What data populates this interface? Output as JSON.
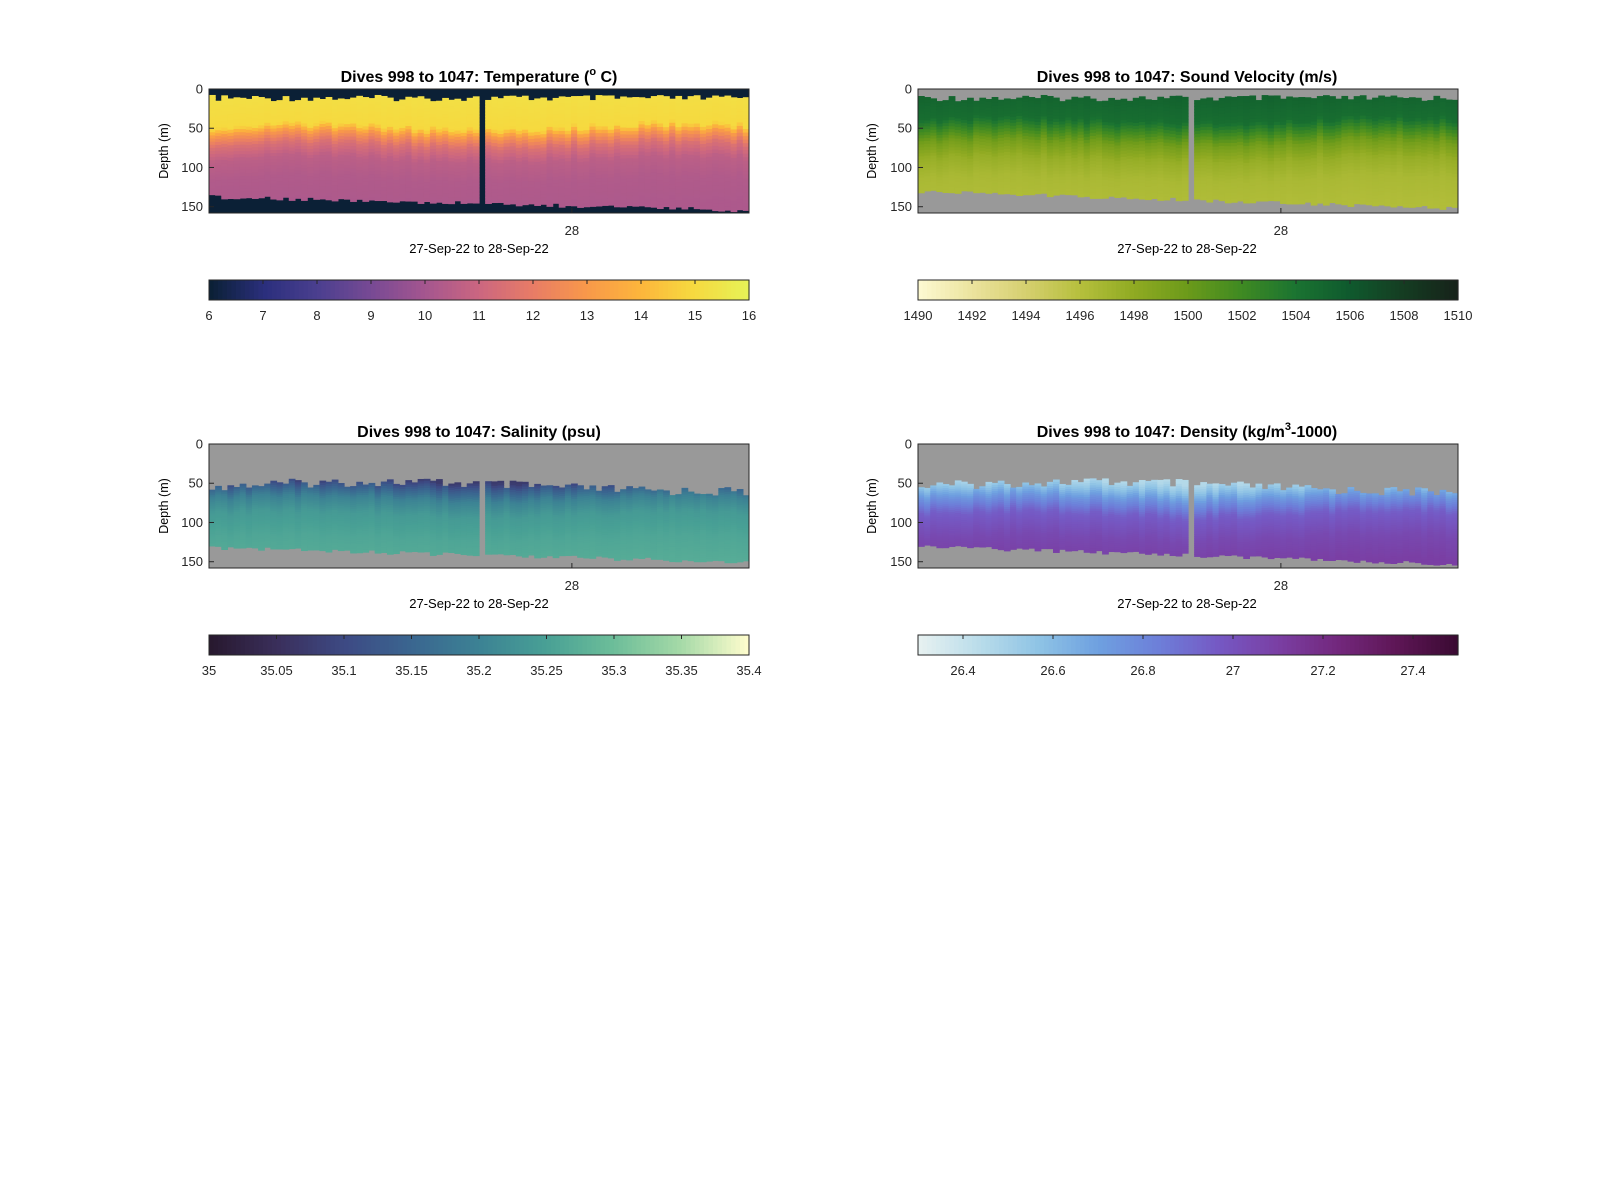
{
  "chart_data": [
    {
      "type": "heatmap",
      "variable": "temperature",
      "title": "Dives 998 to 1047: Temperature (",
      "title_sup": "o",
      "title_end": " C)",
      "ylabel": "Depth (m)",
      "xlabel": "27-Sep-22 to 28-Sep-22",
      "x_ticks": [
        "28"
      ],
      "y_ticks": [
        0,
        50,
        100,
        150
      ],
      "ylim": [
        0,
        158
      ],
      "reversed_y": true,
      "clim": [
        6,
        16
      ],
      "colorbar_ticks": [
        "6",
        "7",
        "8",
        "9",
        "10",
        "11",
        "12",
        "13",
        "14",
        "15",
        "16"
      ],
      "colormap": [
        "#0b2036",
        "#2b2f7d",
        "#4b3f8f",
        "#784a94",
        "#a5568f",
        "#cb6680",
        "#e87c66",
        "#f8984a",
        "#fcb53c",
        "#f6d93f",
        "#e7f256"
      ],
      "background": "#0b2036",
      "profile": [
        [
          0,
          15.3
        ],
        [
          48,
          15.0
        ],
        [
          58,
          13.0
        ],
        [
          72,
          11.5
        ],
        [
          90,
          10.6
        ],
        [
          115,
          10.3
        ],
        [
          150,
          10.2
        ]
      ],
      "surface_gap_depth": 10,
      "bottom_depth_start": 137,
      "bottom_depth_end": 154,
      "missing_dive_fraction": 0.5
    },
    {
      "type": "heatmap",
      "variable": "sound_velocity",
      "title": "Dives 998 to 1047: Sound Velocity (m/s)",
      "ylabel": "Depth (m)",
      "xlabel": "27-Sep-22 to 28-Sep-22",
      "x_ticks": [
        "28"
      ],
      "y_ticks": [
        0,
        50,
        100,
        150
      ],
      "ylim": [
        0,
        158
      ],
      "reversed_y": true,
      "clim": [
        1490,
        1510
      ],
      "colorbar_ticks": [
        "1490",
        "1492",
        "1494",
        "1496",
        "1498",
        "1500",
        "1502",
        "1504",
        "1506",
        "1508",
        "1510"
      ],
      "colormap": [
        "#fdf9d0",
        "#ebe29c",
        "#d5cf6e",
        "#b5bf3c",
        "#8faa22",
        "#6b9a1a",
        "#3f8a22",
        "#1b7431",
        "#0f5a2e",
        "#153d22",
        "#16231a"
      ],
      "background": "#999999",
      "profile": [
        [
          0,
          1505.5
        ],
        [
          40,
          1504.5
        ],
        [
          55,
          1502.0
        ],
        [
          70,
          1499.5
        ],
        [
          90,
          1497.6
        ],
        [
          115,
          1496.6
        ],
        [
          150,
          1496.2
        ]
      ],
      "surface_gap_depth": 10,
      "bottom_depth_start": 130,
      "bottom_depth_end": 152,
      "missing_dive_fraction": 0.5
    },
    {
      "type": "heatmap",
      "variable": "salinity",
      "title": "Dives 998 to 1047: Salinity (psu)",
      "ylabel": "Depth (m)",
      "xlabel": "27-Sep-22 to 28-Sep-22",
      "x_ticks": [
        "28"
      ],
      "y_ticks": [
        0,
        50,
        100,
        150
      ],
      "ylim": [
        0,
        158
      ],
      "reversed_y": true,
      "clim": [
        35,
        35.4
      ],
      "colorbar_ticks": [
        "35",
        "35.05",
        "35.1",
        "35.15",
        "35.2",
        "35.25",
        "35.3",
        "35.35",
        "35.4"
      ],
      "colormap": [
        "#28192f",
        "#3a2f5c",
        "#3d4a84",
        "#3a6690",
        "#3c8294",
        "#48a095",
        "#6cbd99",
        "#a4d9a7",
        "#fdfccc"
      ],
      "background": "#999999",
      "profile": [
        [
          45,
          35.07
        ],
        [
          55,
          35.13
        ],
        [
          70,
          35.2
        ],
        [
          90,
          35.24
        ],
        [
          120,
          35.26
        ],
        [
          150,
          35.27
        ]
      ],
      "surface_gap_depth": 52,
      "bottom_depth_start": 132,
      "bottom_depth_end": 150,
      "missing_dive_fraction": 0.5
    },
    {
      "type": "heatmap",
      "variable": "density",
      "title": "Dives 998 to 1047: Density (kg/m",
      "title_sup": "3",
      "title_end": "-1000)",
      "ylabel": "Depth (m)",
      "xlabel": "27-Sep-22 to 28-Sep-22",
      "x_ticks": [
        "28"
      ],
      "y_ticks": [
        0,
        50,
        100,
        150
      ],
      "ylim": [
        0,
        158
      ],
      "reversed_y": true,
      "clim": [
        26.3,
        27.5
      ],
      "colorbar_ticks": [
        "26.4",
        "26.6",
        "26.8",
        "27",
        "27.2",
        "27.4"
      ],
      "colormap": [
        "#e6f1f1",
        "#b9dcea",
        "#8ec3e5",
        "#6ea0e0",
        "#6d7fd9",
        "#7559c4",
        "#7a3fa4",
        "#73287d",
        "#5e1656",
        "#3b0a33"
      ],
      "background": "#999999",
      "profile": [
        [
          45,
          26.45
        ],
        [
          55,
          26.55
        ],
        [
          70,
          26.75
        ],
        [
          90,
          26.95
        ],
        [
          120,
          27.05
        ],
        [
          150,
          27.1
        ]
      ],
      "surface_gap_depth": 52,
      "bottom_depth_start": 130,
      "bottom_depth_end": 153,
      "missing_dive_fraction": 0.5
    }
  ]
}
